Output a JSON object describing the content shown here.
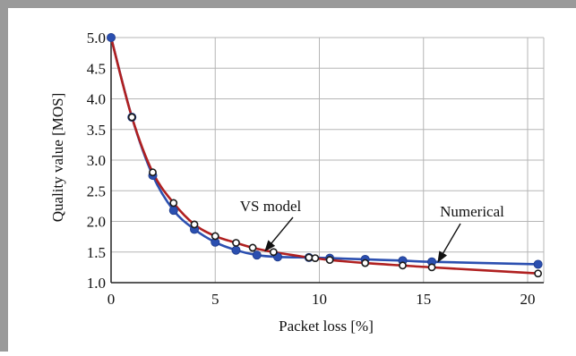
{
  "chart_data": {
    "type": "line",
    "xlabel": "Packet loss [%]",
    "ylabel": "Quality value [MOS]",
    "xlim": [
      0,
      21
    ],
    "ylim": [
      1.0,
      5.0
    ],
    "x_ticks": [
      0,
      5,
      10,
      15,
      20
    ],
    "y_ticks": [
      1.0,
      1.5,
      2.0,
      2.5,
      3.0,
      3.5,
      4.0,
      4.5,
      5.0
    ],
    "x_tick_labels": [
      "0",
      "5",
      "10",
      "15",
      "20"
    ],
    "y_tick_labels": [
      "1.0",
      "1.5",
      "2.0",
      "2.5",
      "3.0",
      "3.5",
      "4.0",
      "4.5",
      "5.0"
    ],
    "grid": true,
    "series": [
      {
        "name": "Numerical",
        "color": "#2b4fb0",
        "marker": "filled-circle",
        "x": [
          0,
          1,
          2,
          3,
          4,
          5,
          6,
          7,
          8,
          9.5,
          10.5,
          12.2,
          14,
          15.4,
          20.5
        ],
        "y": [
          5.0,
          3.7,
          2.75,
          2.18,
          1.87,
          1.66,
          1.53,
          1.45,
          1.42,
          1.41,
          1.4,
          1.38,
          1.36,
          1.34,
          1.3
        ]
      },
      {
        "name": "VS model",
        "color": "#b02020",
        "marker": "open-circle",
        "x": [
          1,
          2,
          3,
          4,
          5,
          6,
          6.8,
          7.8,
          9.5,
          9.8,
          10.5,
          12.2,
          14,
          15.4,
          20.5
        ],
        "y": [
          3.7,
          2.8,
          2.3,
          1.95,
          1.76,
          1.65,
          1.57,
          1.5,
          1.41,
          1.4,
          1.37,
          1.32,
          1.28,
          1.25,
          1.15
        ]
      }
    ],
    "annotations": [
      {
        "text": "VS model",
        "points_to": [
          7.4,
          1.52
        ]
      },
      {
        "text": "Numerical",
        "points_to": [
          15.7,
          1.34
        ]
      }
    ]
  }
}
